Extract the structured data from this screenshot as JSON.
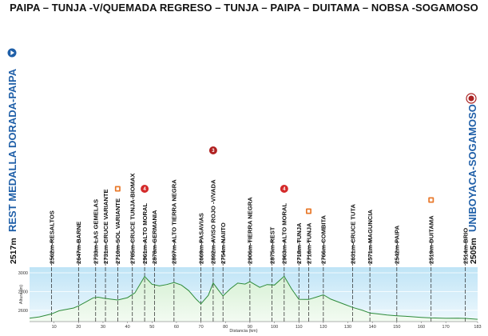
{
  "title": "PAIPA – TUNJA -V/QUEMADA REGRESO – TUNJA – PAIPA – DUITAMA – NOBSA -SOGAMOSO",
  "start": {
    "name": "REST MEDALLA DORADA-PAIPA",
    "altitude": "2517m"
  },
  "finish": {
    "name": "UNIBOYACA-SOGAMOSO",
    "altitude": "2505m"
  },
  "waypoints": [
    {
      "km": 9,
      "label": "2562m-RESALTOS"
    },
    {
      "km": 20,
      "label": "2647m-BARNE"
    },
    {
      "km": 27,
      "label": "2733m-LAS GEMELAS"
    },
    {
      "km": 31,
      "label": "2731m-CRUCE VARIANTE"
    },
    {
      "km": 36,
      "label": "2710m-SOL VARIANTE"
    },
    {
      "km": 42,
      "label": "2785m-CRUCE TUNJA-BIOMAX"
    },
    {
      "km": 47,
      "label": "2961m-ALTO MORAL"
    },
    {
      "km": 51,
      "label": "2878m-GERMANIA"
    },
    {
      "km": 59,
      "label": "2897m-ALTO TIERRA NEGRA"
    },
    {
      "km": 70,
      "label": "2669m-PASAVIAS"
    },
    {
      "km": 75,
      "label": "2892m-AVISO ROJO -V/VADA"
    },
    {
      "km": 79,
      "label": "2754m-NAIITO"
    },
    {
      "km": 90,
      "label": "2906m-TIERRA NEGRA"
    },
    {
      "km": 99,
      "label": "2875m-REST"
    },
    {
      "km": 104,
      "label": "2963m-ALTO MORAL"
    },
    {
      "km": 110,
      "label": "2718m-TUNJA"
    },
    {
      "km": 114,
      "label": "2716m-TUNJA"
    },
    {
      "km": 120,
      "label": "2766m-COMBITA"
    },
    {
      "km": 132,
      "label": "2631m-CRUCE TUTA"
    },
    {
      "km": 139,
      "label": "2571m-MAGUNCIA"
    },
    {
      "km": 150,
      "label": "2542m-PAIPA"
    },
    {
      "km": 164,
      "label": "2519m-DUITAMA"
    },
    {
      "km": 178,
      "label": "2514m-BRIO"
    }
  ],
  "markers": [
    {
      "km": 36,
      "type": "sprint-flag",
      "color": "#e8782a"
    },
    {
      "km": 47,
      "type": "climb-badge",
      "number": "4",
      "color": "#d42a2a"
    },
    {
      "km": 75,
      "type": "climb-badge",
      "number": "3",
      "color": "#b02020"
    },
    {
      "km": 104,
      "type": "climb-badge",
      "number": "4",
      "color": "#d42a2a"
    },
    {
      "km": 114,
      "type": "sprint-flag",
      "color": "#e8782a"
    },
    {
      "km": 164,
      "type": "sprint-flag",
      "color": "#e8782a"
    }
  ],
  "chart_data": {
    "type": "area",
    "xlabel": "Distancia (km)",
    "ylabel": "Altura (m)",
    "xlim": [
      0,
      183
    ],
    "ylim": [
      2480,
      3060
    ],
    "xticks": [
      10,
      20,
      30,
      40,
      50,
      60,
      70,
      80,
      90,
      100,
      110,
      120,
      130,
      140,
      150,
      160,
      170,
      183
    ],
    "yticks": [
      2600,
      2800,
      3000
    ],
    "x": [
      0,
      4,
      9,
      12,
      15,
      18,
      20,
      23,
      26,
      28,
      30,
      33,
      36,
      40,
      43,
      47,
      50,
      53,
      56,
      59,
      62,
      65,
      68,
      70,
      73,
      75,
      77,
      79,
      82,
      85,
      88,
      90,
      94,
      97,
      100,
      104,
      107,
      110,
      114,
      117,
      120,
      123,
      126,
      129,
      132,
      136,
      139,
      143,
      146,
      150,
      155,
      160,
      164,
      170,
      175,
      178,
      183
    ],
    "y": [
      2517,
      2530,
      2562,
      2595,
      2610,
      2625,
      2647,
      2690,
      2733,
      2740,
      2731,
      2720,
      2710,
      2735,
      2785,
      2961,
      2878,
      2860,
      2875,
      2897,
      2870,
      2810,
      2720,
      2669,
      2760,
      2892,
      2820,
      2754,
      2830,
      2890,
      2880,
      2906,
      2845,
      2875,
      2870,
      2963,
      2830,
      2718,
      2716,
      2740,
      2766,
      2720,
      2690,
      2660,
      2631,
      2600,
      2571,
      2560,
      2550,
      2542,
      2535,
      2525,
      2519,
      2515,
      2516,
      2514,
      2505
    ]
  }
}
